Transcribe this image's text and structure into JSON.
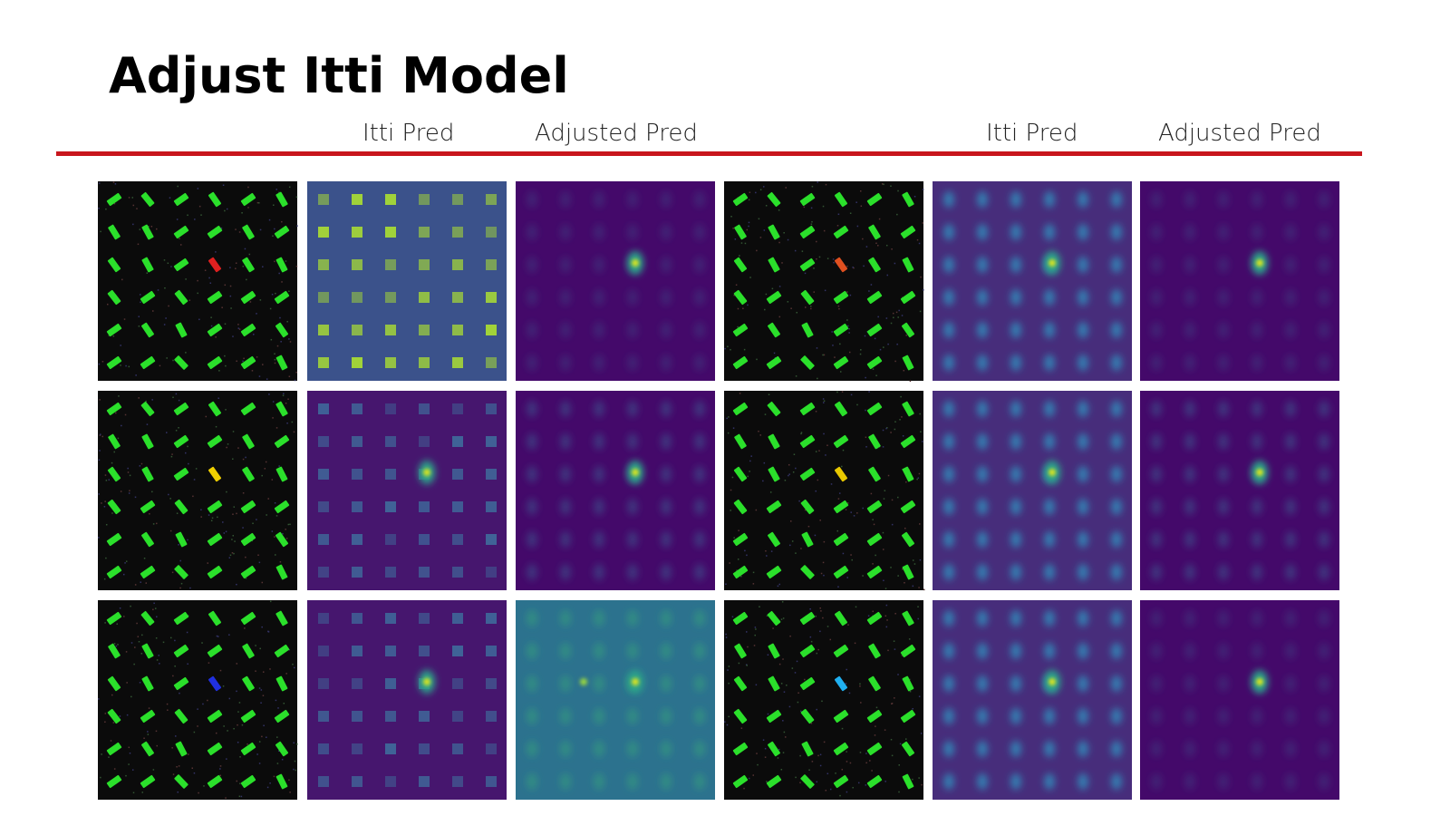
{
  "header": {
    "title": "Adjust Itti Model"
  },
  "columns": [
    "Itti Pred",
    "Adjusted Pred",
    "Itti Pred",
    "Adjusted Pred"
  ]
}
